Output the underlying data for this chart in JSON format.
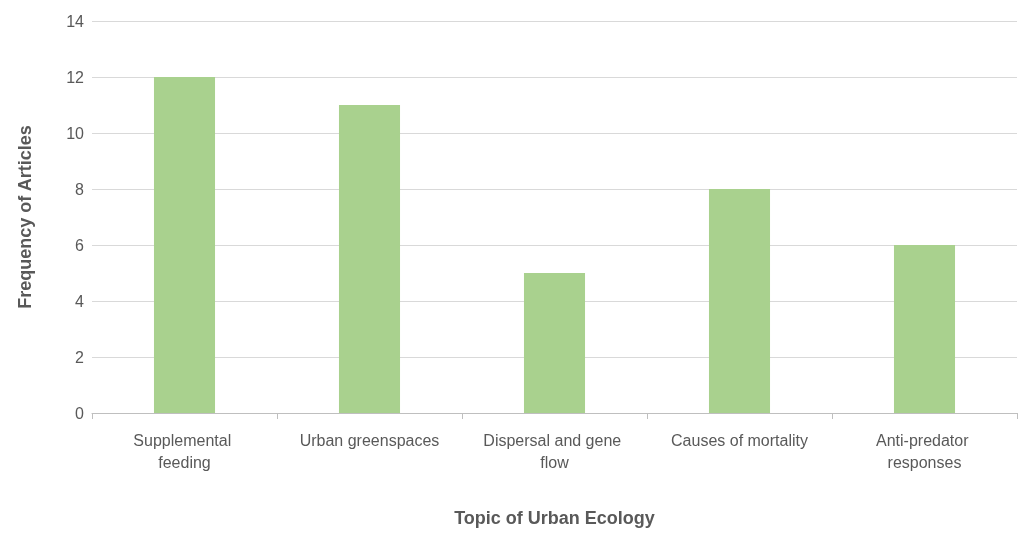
{
  "chart_data": {
    "type": "bar",
    "xlabel": "Topic of Urban Ecology",
    "ylabel": "Frequency of Articles",
    "categories": [
      "Supplemental feeding",
      "Urban greenspaces",
      "Dispersal and gene flow",
      "Causes of mortality",
      "Anti-predator responses"
    ],
    "values": [
      12,
      11,
      5,
      8,
      6
    ],
    "color": "#a9d18e",
    "ylim": [
      0,
      14
    ],
    "yticks": [
      0,
      2,
      4,
      6,
      8,
      10,
      12,
      14
    ],
    "grid": "y"
  }
}
